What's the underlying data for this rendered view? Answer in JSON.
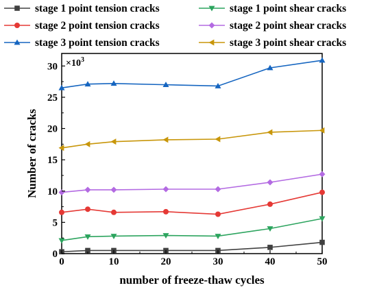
{
  "chart_data": {
    "type": "line",
    "xlabel": "number of freeze-thaw cycles",
    "ylabel": "Number of cracks",
    "y_multiplier_base": "×10",
    "y_multiplier_exp": "3",
    "xlim": [
      0,
      50
    ],
    "ylim": [
      0,
      32
    ],
    "x_ticks": [
      0,
      10,
      20,
      30,
      40,
      50
    ],
    "y_ticks": [
      0,
      5,
      10,
      15,
      20,
      25,
      30
    ],
    "grid": false,
    "legend_position": "top",
    "x": [
      0,
      5,
      10,
      20,
      30,
      40,
      50
    ],
    "series": [
      {
        "name": "stage 1 point tension cracks",
        "color": "#404040",
        "marker": "square",
        "values": [
          0.3,
          0.5,
          0.5,
          0.5,
          0.5,
          1.0,
          1.8
        ]
      },
      {
        "name": "stage 1 point shear cracks",
        "color": "#2ca45e",
        "marker": "triangle-down",
        "values": [
          2.1,
          2.7,
          2.8,
          2.9,
          2.8,
          4.0,
          5.6
        ]
      },
      {
        "name": "stage 2 point tension cracks",
        "color": "#e53935",
        "marker": "circle",
        "values": [
          6.6,
          7.1,
          6.6,
          6.7,
          6.3,
          7.9,
          9.8
        ]
      },
      {
        "name": "stage 2 point shear cracks",
        "color": "#b36ae2",
        "marker": "diamond",
        "values": [
          9.8,
          10.2,
          10.2,
          10.3,
          10.3,
          11.4,
          12.7
        ]
      },
      {
        "name": "stage 3 point tension cracks",
        "color": "#1565c0",
        "marker": "triangle-up",
        "values": [
          26.5,
          27.1,
          27.2,
          27.0,
          26.8,
          29.7,
          30.9
        ]
      },
      {
        "name": "stage 3 point shear cracks",
        "color": "#c8960a",
        "marker": "triangle-left",
        "values": [
          16.9,
          17.5,
          17.9,
          18.2,
          18.3,
          19.4,
          19.7
        ]
      }
    ]
  }
}
